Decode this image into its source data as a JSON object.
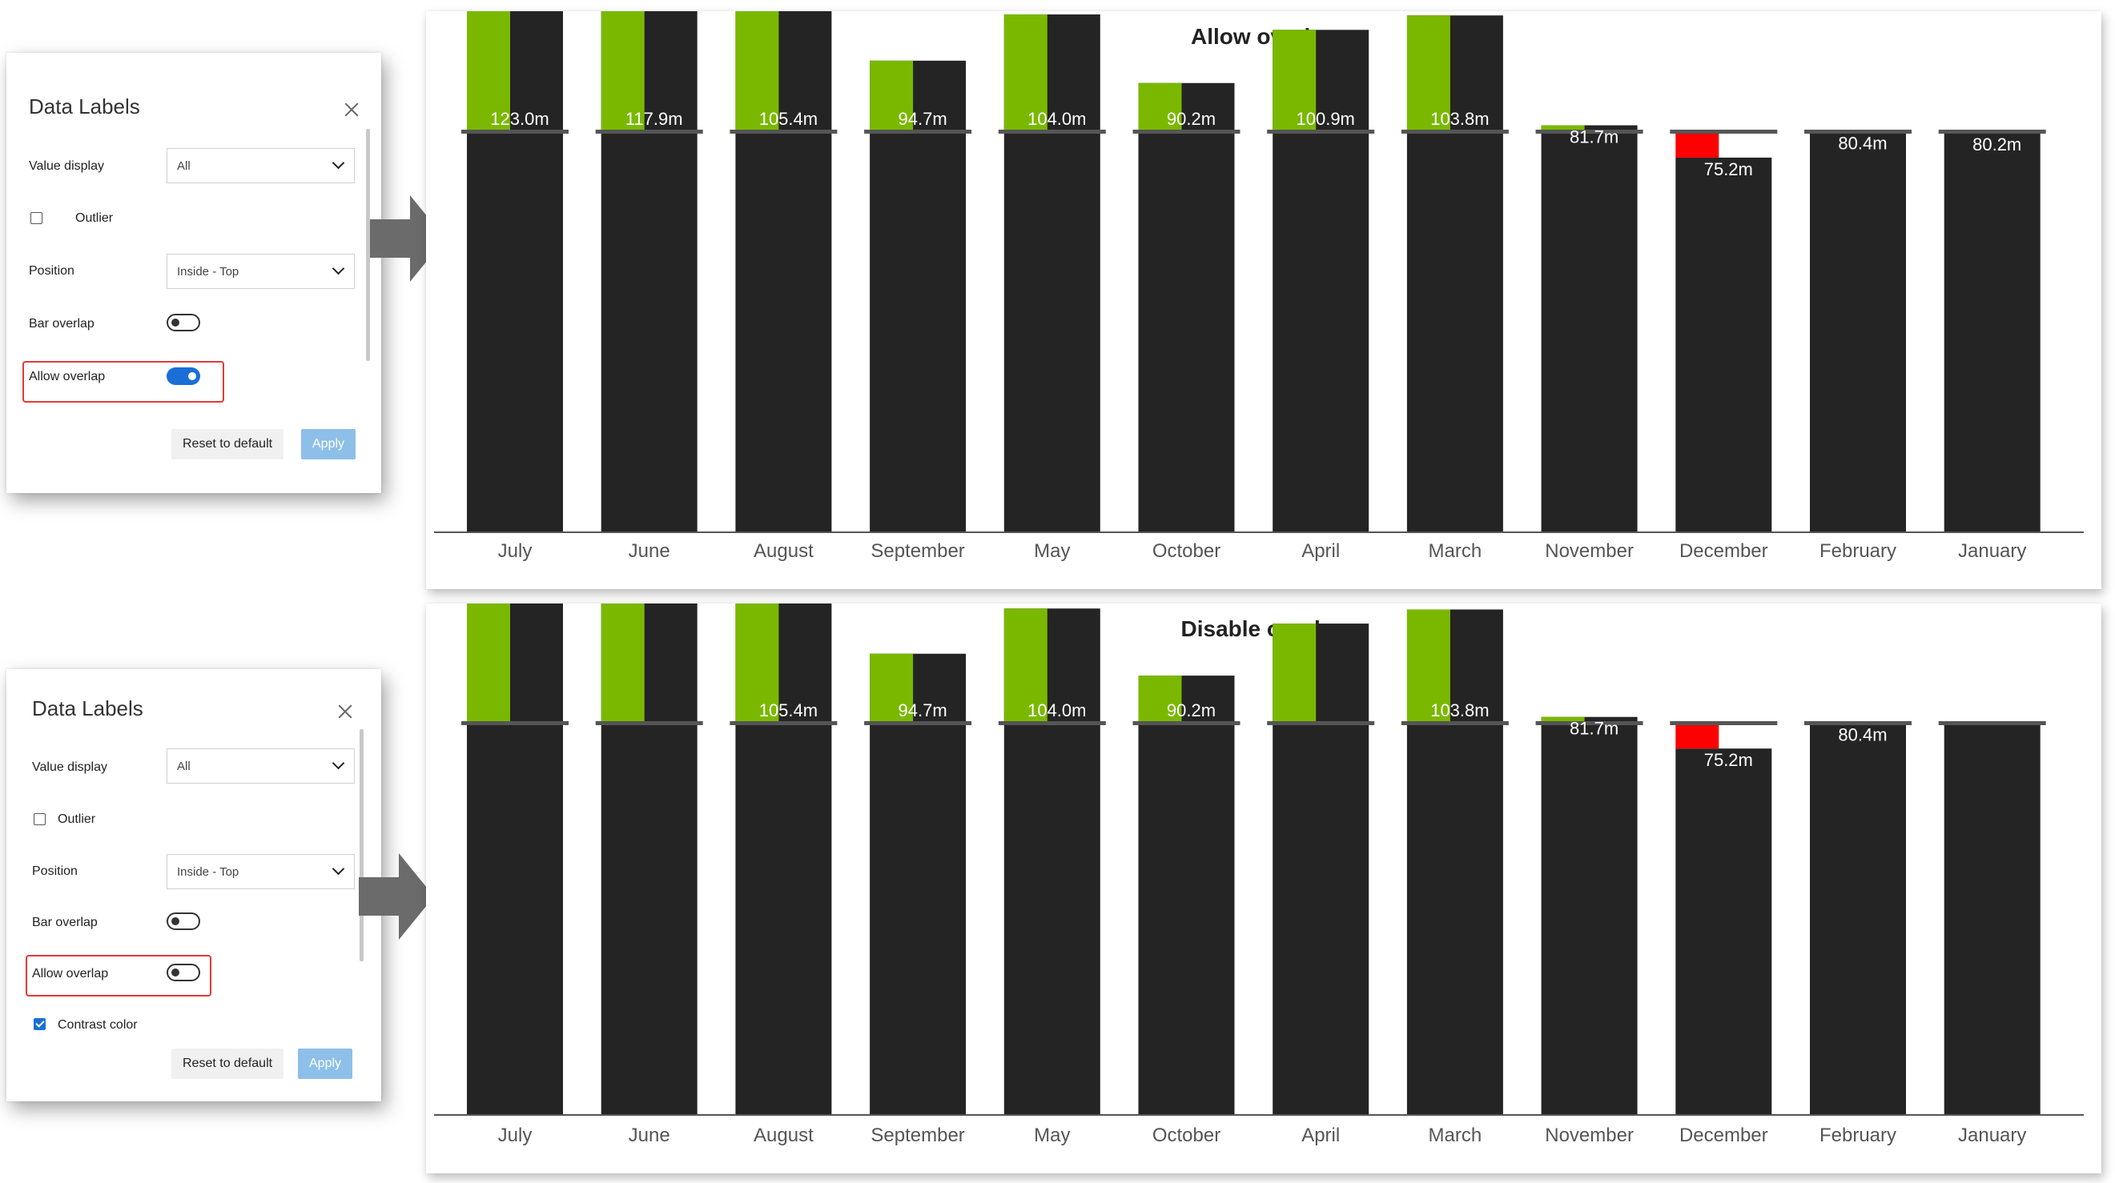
{
  "dialogs": [
    {
      "title": "Data Labels",
      "value_display_label": "Value display",
      "value_display_value": "All",
      "outlier_label": "Outlier",
      "position_label": "Position",
      "position_value": "Inside - Top",
      "bar_overlap_label": "Bar overlap",
      "allow_overlap_label": "Allow overlap",
      "allow_overlap_on": true,
      "reset_label": "Reset to default",
      "apply_label": "Apply"
    },
    {
      "title": "Data Labels",
      "value_display_label": "Value display",
      "value_display_value": "All",
      "outlier_label": "Outlier",
      "position_label": "Position",
      "position_value": "Inside - Top",
      "bar_overlap_label": "Bar overlap",
      "allow_overlap_label": "Allow overlap",
      "allow_overlap_on": false,
      "contrast_label": "Contrast color",
      "reset_label": "Reset to default",
      "apply_label": "Apply"
    }
  ],
  "colors": {
    "bar": "#242424",
    "reference": "#555555",
    "positive": "#7ab800",
    "negative": "#ff0000",
    "toggle_on": "#1a6fd6",
    "highlight": "#e53935"
  },
  "chart_data": [
    {
      "type": "bar",
      "title": "Allow overlap",
      "categories": [
        "July",
        "June",
        "August",
        "September",
        "May",
        "October",
        "April",
        "March",
        "November",
        "December",
        "February",
        "January"
      ],
      "values": [
        123.0,
        117.9,
        105.4,
        94.7,
        104.0,
        90.2,
        100.9,
        103.8,
        81.7,
        75.2,
        80.4,
        80.2
      ],
      "reference": 80.5,
      "labels": [
        "123.0m",
        "117.9m",
        "105.4m",
        "94.7m",
        "104.0m",
        "90.2m",
        "100.9m",
        "103.8m",
        "81.7m",
        "75.2m",
        "80.4m",
        "80.2m"
      ]
    },
    {
      "type": "bar",
      "title": "Disable overlap",
      "categories": [
        "July",
        "June",
        "August",
        "September",
        "May",
        "October",
        "April",
        "March",
        "November",
        "December",
        "February",
        "January"
      ],
      "values": [
        123.0,
        117.9,
        105.4,
        94.7,
        104.0,
        90.2,
        100.9,
        103.8,
        81.7,
        75.2,
        80.4,
        80.2
      ],
      "reference": 80.5,
      "labels": [
        "",
        "",
        "105.4m",
        "94.7m",
        "104.0m",
        "90.2m",
        "",
        "103.8m",
        "81.7m",
        "75.2m",
        "80.4m",
        ""
      ]
    }
  ]
}
